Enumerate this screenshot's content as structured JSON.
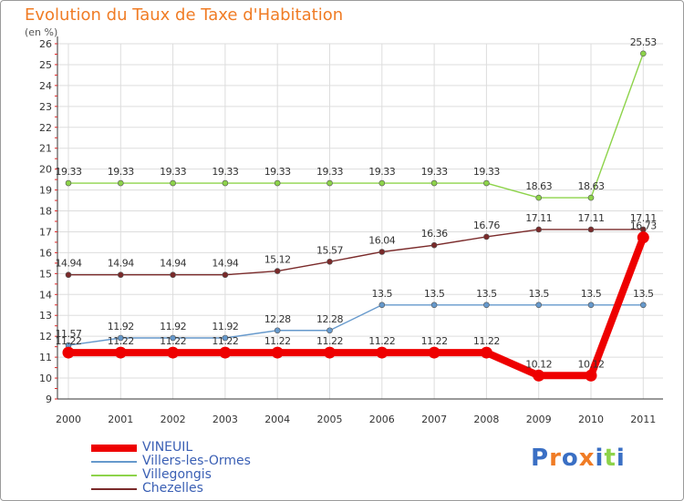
{
  "chart_data": {
    "type": "line",
    "title": "Evolution du Taux de Taxe d'Habitation",
    "subtitle": "(en %)",
    "categories": [
      "2000",
      "2001",
      "2002",
      "2003",
      "2004",
      "2005",
      "2006",
      "2007",
      "2008",
      "2009",
      "2010",
      "2011"
    ],
    "ylim": [
      9,
      26
    ],
    "y_ticks": [
      9,
      10,
      11,
      12,
      13,
      14,
      15,
      16,
      17,
      18,
      19,
      20,
      21,
      22,
      23,
      24,
      25,
      26
    ],
    "grid": true,
    "legend_position": "bottom-left",
    "series": [
      {
        "name": "Villegongis",
        "color": "#8dd34a",
        "values": [
          19.33,
          19.33,
          19.33,
          19.33,
          19.33,
          19.33,
          19.33,
          19.33,
          19.33,
          18.63,
          18.63,
          25.53
        ],
        "labels": [
          "19.33",
          "19.33",
          "19.33",
          "19.33",
          "19.33",
          "19.33",
          "19.33",
          "19.33",
          "19.33",
          "18.63",
          "18.63",
          "25.53"
        ]
      },
      {
        "name": "Chezelles",
        "color": "#7a2a2a",
        "values": [
          14.94,
          14.94,
          14.94,
          14.94,
          15.12,
          15.57,
          16.04,
          16.36,
          16.76,
          17.11,
          17.11,
          17.11
        ],
        "labels": [
          "14.94",
          "14.94",
          "14.94",
          "14.94",
          "15.12",
          "15.57",
          "16.04",
          "16.36",
          "16.76",
          "17.11",
          "17.11",
          "17.11"
        ]
      },
      {
        "name": "Villers-les-Ormes",
        "color": "#6699cc",
        "values": [
          11.57,
          11.92,
          11.92,
          11.92,
          12.28,
          12.28,
          13.5,
          13.5,
          13.5,
          13.5,
          13.5,
          13.5
        ],
        "labels": [
          "11.57",
          "11.92",
          "11.92",
          "11.92",
          "12.28",
          "12.28",
          "13.5",
          "13.5",
          "13.5",
          "13.5",
          "13.5",
          "13.5"
        ]
      },
      {
        "name": "VINEUIL",
        "color": "#ee0000",
        "values": [
          11.22,
          11.22,
          11.22,
          11.22,
          11.22,
          11.22,
          11.22,
          11.22,
          11.22,
          10.12,
          10.12,
          16.73
        ],
        "labels": [
          "11.22",
          "11.22",
          "11.22",
          "11.22",
          "11.22",
          "11.22",
          "11.22",
          "11.22",
          "11.22",
          "10.12",
          "10.12",
          "16.73"
        ]
      }
    ]
  },
  "legend": [
    {
      "label": "VINEUIL",
      "color": "#ee0000",
      "thick": true
    },
    {
      "label": "Villers-les-Ormes",
      "color": "#6699cc",
      "thick": false
    },
    {
      "label": "Villegongis",
      "color": "#8dd34a",
      "thick": false
    },
    {
      "label": "Chezelles",
      "color": "#7a2a2a",
      "thick": false
    }
  ],
  "logo": {
    "text": "Proxiti",
    "colors": [
      "#3a6fc4",
      "#f07c25",
      "#3a6fc4",
      "#f07c25",
      "#3a6fc4",
      "#8dd34a",
      "#3a6fc4"
    ]
  }
}
